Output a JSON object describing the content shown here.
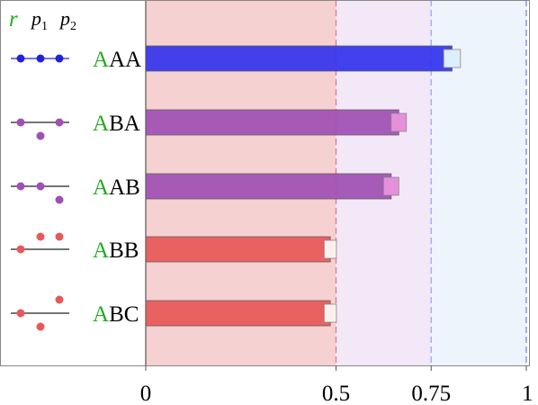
{
  "chart_data": {
    "type": "bar",
    "orientation": "horizontal",
    "header": {
      "r": "r",
      "p1": "p",
      "p1_sub": "1",
      "p2": "p",
      "p2_sub": "2"
    },
    "categories": [
      {
        "label_first": "A",
        "label_rest": "AA",
        "value": 0.805,
        "error": 0.022,
        "color": "#3333ee",
        "error_color": "#ddeeff",
        "dots": "line3"
      },
      {
        "label_first": "A",
        "label_rest": "BA",
        "value": 0.665,
        "error": 0.02,
        "color": "#a050b4",
        "error_color": "#e690dc",
        "dots": "middle-down"
      },
      {
        "label_first": "A",
        "label_rest": "AB",
        "value": 0.645,
        "error": 0.02,
        "color": "#a050b4",
        "error_color": "#e690dc",
        "dots": "right-down"
      },
      {
        "label_first": "A",
        "label_rest": "BB",
        "value": 0.485,
        "error": 0.016,
        "color": "#e85858",
        "error_color": "#fff0f0",
        "dots": "two-up"
      },
      {
        "label_first": "A",
        "label_rest": "BC",
        "value": 0.485,
        "error": 0.016,
        "color": "#e85858",
        "error_color": "#fff0f0",
        "dots": "up-down"
      }
    ],
    "xlim": [
      0,
      1
    ],
    "xticks": [
      {
        "value": 0,
        "label": "0"
      },
      {
        "value": 0.5,
        "label": "0.5"
      },
      {
        "value": 0.75,
        "label": "0.75"
      },
      {
        "value": 1,
        "label": "1"
      }
    ],
    "regions": [
      {
        "from": 0,
        "to": 0.5,
        "color": "#f6d1d1"
      },
      {
        "from": 0.5,
        "to": 0.75,
        "color": "#f3e8f8"
      },
      {
        "from": 0.75,
        "to": 1,
        "color": "#edf4fc"
      }
    ],
    "reference_lines": [
      {
        "value": 0.5,
        "color": "#e07a8a"
      },
      {
        "value": 0.75,
        "color": "#9fa8ee"
      },
      {
        "value": 1,
        "color": "#7c82d8"
      }
    ],
    "dot_colors": {
      "line3": "#2222dd",
      "middle-down": "#a050b4",
      "right-down": "#a050b4",
      "two-up": "#e85858",
      "up-down": "#e85858"
    }
  }
}
